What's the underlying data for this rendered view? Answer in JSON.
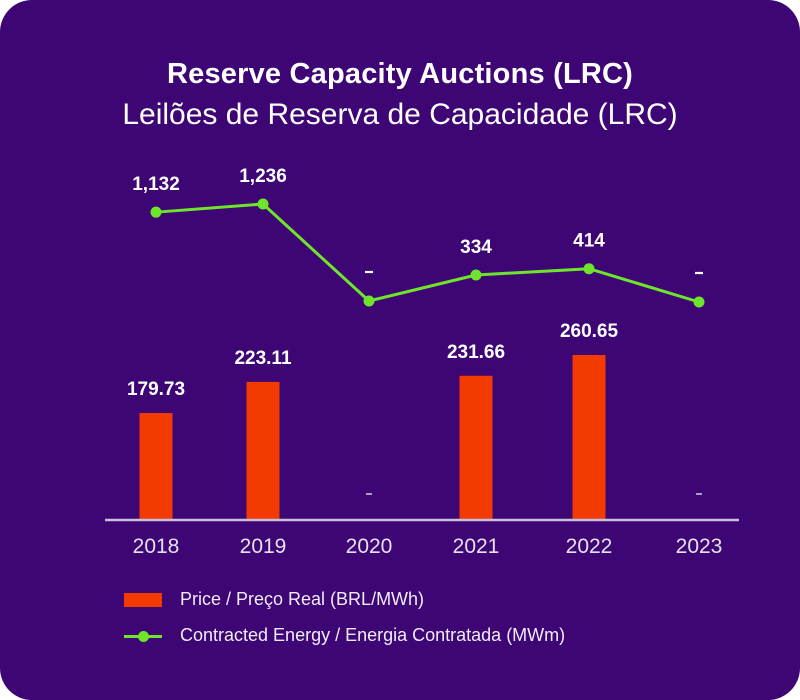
{
  "colors": {
    "background": "#3e0674",
    "bar": "#f33a00",
    "line": "#6ee52b",
    "text": "#ffffff",
    "axis": "#c9bfdc"
  },
  "chart_data": {
    "type": "bar",
    "title": "Reserve Capacity Auctions (LRC)",
    "subtitle": "Leilões de Reserva de Capacidade (LRC)",
    "categories": [
      "2018",
      "2019",
      "2020",
      "2021",
      "2022",
      "2023"
    ],
    "series": [
      {
        "name": "Price / Preço Real (BRL/MWh)",
        "kind": "bar",
        "values": [
          179.73,
          223.11,
          null,
          231.66,
          260.65,
          null
        ],
        "labels": [
          "179.73",
          "223.11",
          "–",
          "231.66",
          "260.65",
          "–"
        ]
      },
      {
        "name": "Contracted Energy / Energia Contratada (MWm)",
        "kind": "line",
        "values": [
          1132,
          1236,
          null,
          334,
          414,
          null
        ],
        "labels": [
          "1,132",
          "1,236",
          "-",
          "334",
          "414",
          "-"
        ]
      }
    ],
    "xlabel": "",
    "ylabel": "",
    "grid": false,
    "legend": "bottom-left"
  },
  "legend": {
    "items": [
      {
        "label": "Price / Preço Real (BRL/MWh)",
        "icon": "bar-swatch-icon"
      },
      {
        "label": "Contracted Energy / Energia Contratada (MWm)",
        "icon": "line-marker-swatch-icon"
      }
    ]
  }
}
